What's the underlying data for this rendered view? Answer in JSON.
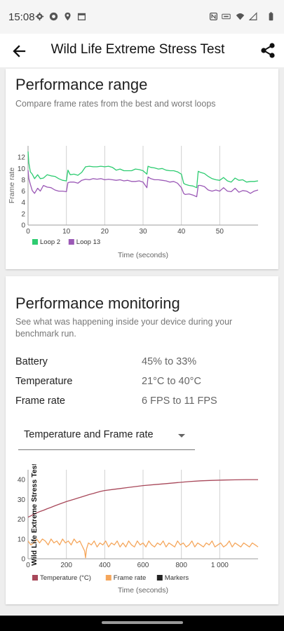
{
  "status_bar": {
    "time": "15:08"
  },
  "app_bar": {
    "title": "Wild Life Extreme Stress Test"
  },
  "performance_range": {
    "title": "Performance range",
    "subtitle": "Compare frame rates from the best and worst loops"
  },
  "performance_monitoring": {
    "title": "Performance monitoring",
    "subtitle": "See what was happening inside your device during your benchmark run.",
    "stats": [
      {
        "label": "Battery",
        "value": "45% to 33%"
      },
      {
        "label": "Temperature",
        "value": "21°C to 40°C"
      },
      {
        "label": "Frame rate",
        "value": "6 FPS to 11 FPS"
      }
    ],
    "dropdown": {
      "selected": "Temperature and Frame rate"
    }
  },
  "chart_data": [
    {
      "type": "line",
      "title": "",
      "xlabel": "Time (seconds)",
      "ylabel": "Frame rate",
      "xlim": [
        0,
        60
      ],
      "ylim": [
        0,
        14
      ],
      "x_ticks": [
        0,
        10,
        20,
        30,
        40,
        50
      ],
      "y_ticks": [
        0,
        2,
        4,
        6,
        8,
        10,
        12
      ],
      "grid": "vertical",
      "legend": "bottom-left",
      "series": [
        {
          "name": "Loop 2",
          "color": "#2ecc71",
          "x": [
            0,
            0.2,
            0.6,
            1.1,
            1.7,
            2.5,
            3.2,
            4.0,
            5.0,
            6.0,
            7.0,
            8.0,
            9.0,
            10.0,
            10.4,
            11.0,
            12.0,
            13.0,
            14.0,
            15.0,
            16.0,
            17.0,
            18.0,
            19.0,
            20.0,
            21.0,
            22.0,
            23.0,
            24.0,
            25.0,
            26.0,
            27.0,
            28.0,
            29.0,
            30.0,
            31.0,
            31.3,
            32.0,
            33.0,
            34.0,
            35.0,
            36.0,
            37.0,
            38.0,
            39.0,
            40.0,
            40.6,
            41.0,
            42.0,
            43.0,
            44.0,
            44.4,
            45.0,
            46.0,
            47.0,
            48.0,
            49.0,
            50.0,
            51.0,
            52.0,
            53.0,
            54.0,
            55.0,
            56.0,
            57.0,
            58.0,
            59.0,
            60.0
          ],
          "values": [
            13.0,
            11.0,
            9.4,
            9.0,
            8.2,
            8.9,
            8.2,
            8.3,
            8.9,
            8.7,
            8.6,
            8.2,
            7.9,
            7.8,
            9.7,
            8.9,
            9.0,
            8.8,
            9.3,
            10.3,
            10.4,
            10.3,
            10.3,
            10.4,
            10.3,
            10.4,
            10.2,
            9.7,
            9.9,
            9.6,
            9.6,
            9.6,
            9.9,
            9.8,
            9.6,
            9.0,
            10.4,
            10.2,
            10.1,
            9.9,
            10.0,
            9.7,
            9.6,
            9.6,
            9.4,
            9.0,
            7.4,
            7.2,
            7.0,
            6.9,
            6.6,
            9.5,
            9.3,
            9.1,
            8.6,
            8.2,
            8.0,
            7.9,
            8.4,
            7.8,
            7.6,
            8.3,
            7.9,
            8.0,
            7.6,
            7.7,
            7.7,
            7.8
          ]
        },
        {
          "name": "Loop 13",
          "color": "#9b59b6",
          "x": [
            0,
            0.2,
            0.6,
            1.1,
            1.7,
            2.5,
            3.2,
            4.0,
            5.0,
            6.0,
            7.0,
            8.0,
            9.0,
            10.0,
            10.4,
            11.0,
            12.0,
            13.0,
            14.0,
            15.0,
            16.0,
            17.0,
            18.0,
            19.0,
            20.0,
            21.0,
            22.0,
            23.0,
            24.0,
            25.0,
            26.0,
            27.0,
            28.0,
            29.0,
            30.0,
            31.0,
            31.3,
            32.0,
            33.0,
            34.0,
            35.0,
            36.0,
            37.0,
            38.0,
            39.0,
            40.0,
            40.6,
            41.0,
            42.0,
            43.0,
            44.0,
            44.4,
            45.0,
            46.0,
            47.0,
            48.0,
            49.0,
            50.0,
            51.0,
            52.0,
            53.0,
            54.0,
            55.0,
            56.0,
            57.0,
            58.0,
            59.0,
            60.0
          ],
          "values": [
            9.7,
            8.2,
            7.2,
            6.1,
            5.6,
            6.5,
            6.0,
            7.0,
            6.7,
            6.6,
            6.2,
            6.0,
            6.0,
            5.9,
            7.5,
            7.6,
            7.6,
            7.4,
            7.9,
            8.1,
            8.0,
            8.2,
            8.1,
            8.2,
            8.0,
            8.1,
            8.0,
            7.9,
            8.0,
            7.8,
            7.9,
            7.7,
            7.7,
            7.8,
            7.6,
            6.6,
            8.5,
            8.2,
            8.0,
            8.0,
            7.9,
            7.8,
            7.6,
            7.7,
            7.4,
            6.6,
            5.6,
            5.4,
            5.5,
            5.3,
            5.0,
            7.0,
            7.0,
            6.8,
            6.2,
            6.0,
            6.2,
            6.0,
            6.6,
            6.0,
            5.9,
            6.5,
            5.8,
            6.1,
            6.0,
            5.6,
            6.0,
            6.2
          ]
        }
      ]
    },
    {
      "type": "line",
      "title": "",
      "xlabel": "Time (seconds)",
      "ylabel": "Wild Life Extreme Stress Test",
      "xlim": [
        0,
        1200
      ],
      "ylim": [
        0,
        45
      ],
      "x_ticks": [
        0,
        200,
        400,
        600,
        800,
        1000
      ],
      "x_tick_labels": [
        "0",
        "200",
        "400",
        "600",
        "800",
        "1 000"
      ],
      "y_ticks": [
        0,
        10,
        20,
        30,
        40
      ],
      "grid": "vertical",
      "legend": "bottom-left",
      "legend_labels": [
        "Temperature (°C)",
        "Frame rate",
        "Markers"
      ],
      "series": [
        {
          "name": "Temperature (°C)",
          "color": "#a8485a",
          "x": [
            0,
            20,
            40,
            60,
            80,
            100,
            120,
            140,
            160,
            180,
            200,
            220,
            240,
            260,
            280,
            300,
            320,
            340,
            360,
            380,
            400,
            440,
            480,
            520,
            560,
            600,
            660,
            720,
            780,
            840,
            900,
            960,
            1020,
            1080,
            1140,
            1200
          ],
          "values": [
            21.0,
            22.0,
            23.0,
            23.8,
            24.5,
            25.3,
            26.0,
            26.8,
            27.5,
            28.2,
            28.9,
            29.5,
            30.1,
            30.7,
            31.3,
            31.9,
            32.5,
            33.0,
            33.6,
            34.1,
            34.5,
            35.0,
            35.5,
            36.0,
            36.5,
            37.0,
            37.5,
            38.0,
            38.5,
            39.0,
            39.4,
            39.6,
            39.8,
            39.9,
            40.0,
            40.0
          ]
        },
        {
          "name": "Frame rate",
          "color": "#f5a65b",
          "x": [
            0,
            15,
            30,
            45,
            60,
            75,
            90,
            105,
            120,
            135,
            150,
            165,
            180,
            195,
            210,
            225,
            240,
            255,
            270,
            285,
            295,
            300,
            305,
            315,
            330,
            345,
            360,
            375,
            390,
            405,
            420,
            435,
            450,
            465,
            480,
            495,
            510,
            525,
            540,
            555,
            570,
            585,
            600,
            615,
            630,
            645,
            660,
            675,
            690,
            705,
            720,
            735,
            750,
            765,
            780,
            795,
            810,
            825,
            840,
            855,
            870,
            885,
            900,
            915,
            930,
            945,
            960,
            975,
            990,
            1005,
            1020,
            1035,
            1050,
            1065,
            1080,
            1095,
            1110,
            1125,
            1140,
            1155,
            1170,
            1185,
            1200
          ],
          "values": [
            9,
            7,
            8,
            10,
            8,
            10,
            9,
            7,
            10,
            8,
            9,
            7,
            10,
            8,
            9,
            7,
            10,
            8,
            9,
            6,
            4,
            0.5,
            5,
            8,
            7,
            9,
            6,
            8,
            7,
            9,
            6,
            8,
            7,
            9,
            6,
            8,
            6,
            9,
            7,
            6,
            9,
            7,
            8,
            6,
            9,
            7,
            6,
            8,
            7,
            9,
            6,
            8,
            7,
            6,
            9,
            7,
            8,
            6,
            7,
            9,
            6,
            8,
            7,
            6,
            8,
            7,
            9,
            6,
            7,
            8,
            6,
            7,
            9,
            6,
            8,
            7,
            6,
            8,
            7,
            6,
            8,
            7,
            6
          ]
        },
        {
          "name": "Markers",
          "color": "#222222",
          "x": [],
          "values": []
        }
      ]
    }
  ]
}
